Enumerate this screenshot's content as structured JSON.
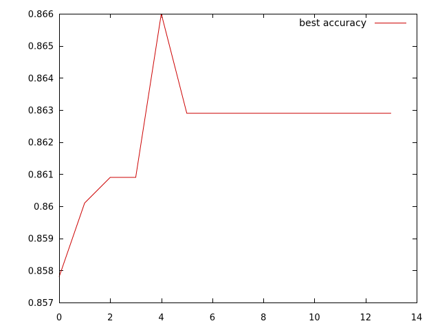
{
  "chart_data": {
    "type": "line",
    "title": "",
    "xlabel": "",
    "ylabel": "",
    "xlim": [
      0,
      14
    ],
    "ylim": [
      0.857,
      0.866
    ],
    "x_ticks": [
      0,
      2,
      4,
      6,
      8,
      10,
      12,
      14
    ],
    "x_tick_labels": [
      "0",
      "2",
      "4",
      "6",
      "8",
      "10",
      "12",
      "14"
    ],
    "y_ticks": [
      0.857,
      0.858,
      0.859,
      0.86,
      0.861,
      0.862,
      0.863,
      0.864,
      0.865,
      0.866
    ],
    "y_tick_labels": [
      "0.857",
      "0.858",
      "0.859",
      "0.86",
      "0.861",
      "0.862",
      "0.863",
      "0.864",
      "0.865",
      "0.866"
    ],
    "grid": false,
    "legend_position": "top-right",
    "series": [
      {
        "name": "best accuracy",
        "color": "#cc0000",
        "x": [
          0,
          1,
          2,
          3,
          4,
          5,
          6,
          7,
          8,
          9,
          10,
          11,
          12,
          13
        ],
        "y": [
          0.8578,
          0.8601,
          0.8609,
          0.8609,
          0.866,
          0.8629,
          0.8629,
          0.8629,
          0.8629,
          0.8629,
          0.8629,
          0.8629,
          0.8629,
          0.8629
        ]
      }
    ]
  }
}
